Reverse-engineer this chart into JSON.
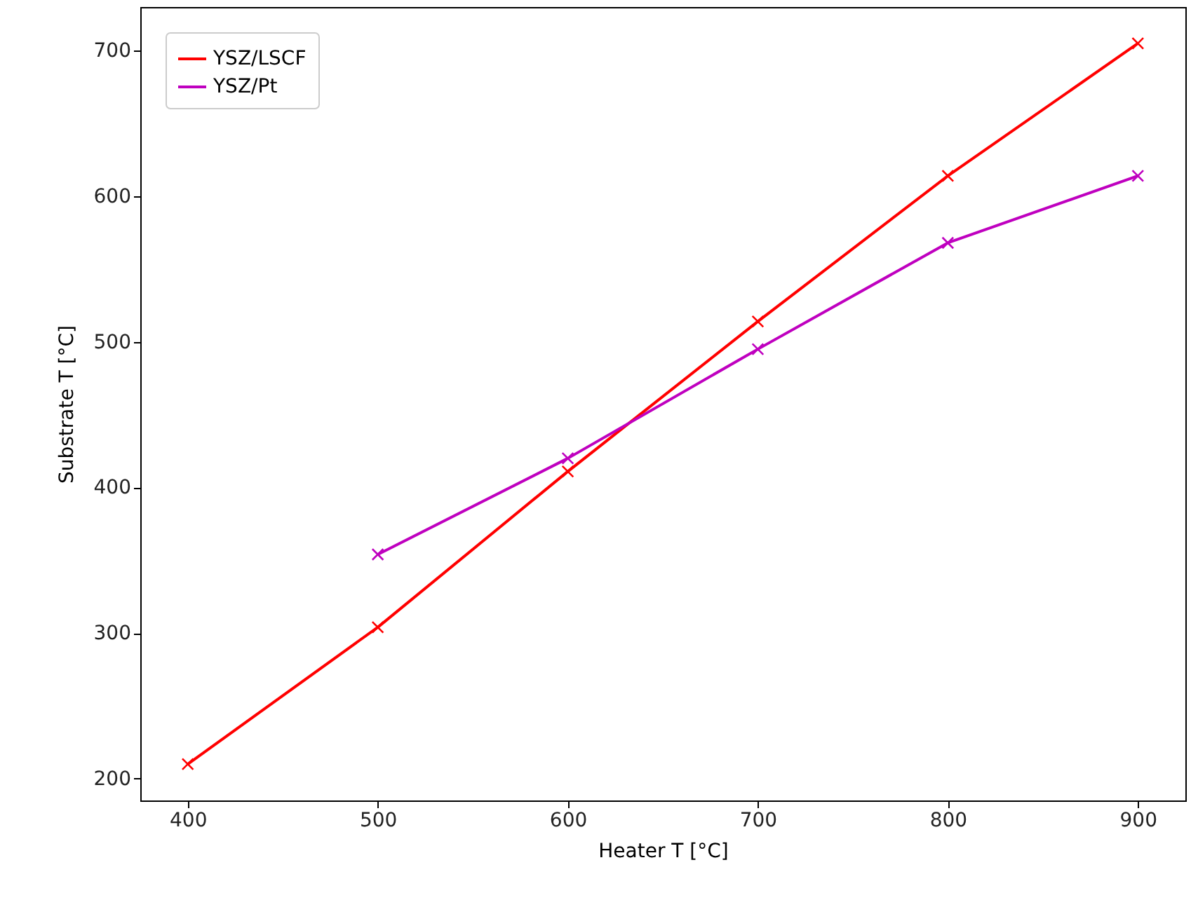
{
  "chart_data": {
    "type": "line",
    "xlabel": "Heater T [°C]",
    "ylabel": "Substrate T [°C]",
    "x": [
      400,
      500,
      600,
      700,
      800,
      900
    ],
    "series": [
      {
        "name": "YSZ/LSCF",
        "color": "#ff0000",
        "values": [
          210,
          304,
          411,
          514,
          614,
          705
        ]
      },
      {
        "name": "YSZ/Pt",
        "color": "#bf00bf",
        "values": [
          null,
          354,
          420,
          495,
          568,
          614
        ]
      }
    ],
    "xlim": [
      375,
      925
    ],
    "ylim": [
      185,
      730
    ],
    "xticks": [
      400,
      500,
      600,
      700,
      800,
      900
    ],
    "yticks": [
      200,
      300,
      400,
      500,
      600,
      700
    ],
    "grid": false,
    "legend": "top left",
    "marker": "cross",
    "line_style": "solid"
  }
}
